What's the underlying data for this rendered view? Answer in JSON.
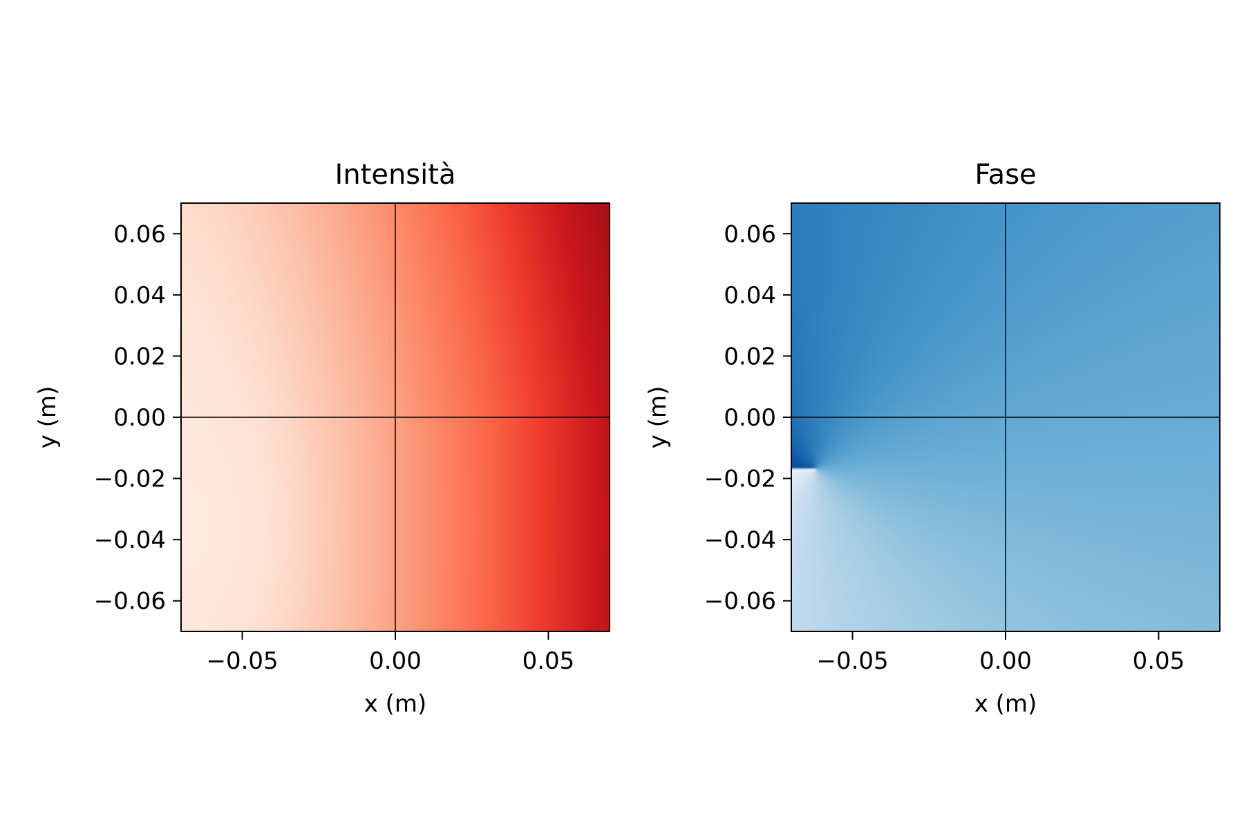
{
  "chart_data": [
    {
      "type": "heatmap",
      "title": "Intensità",
      "xlabel": "x (m)",
      "ylabel": "y (m)",
      "xlim": [
        -0.07,
        0.07
      ],
      "ylim": [
        -0.07,
        0.07
      ],
      "xticks": [
        "−0.05",
        "0.00",
        "0.05"
      ],
      "xtick_values": [
        -0.05,
        0.0,
        0.05
      ],
      "yticks": [
        "0.06",
        "0.04",
        "0.02",
        "0.00",
        "−0.02",
        "−0.04",
        "−0.06"
      ],
      "ytick_values": [
        0.06,
        0.04,
        0.02,
        0.0,
        -0.02,
        -0.04,
        -0.06
      ],
      "colormap": "Reds",
      "crosshair": [
        0.0,
        0.0
      ],
      "grid": false,
      "colors": {
        "low": "#fff5f0",
        "high": "#67000d"
      }
    },
    {
      "type": "heatmap",
      "title": "Fase",
      "xlabel": "x (m)",
      "ylabel": "y (m)",
      "xlim": [
        -0.07,
        0.07
      ],
      "ylim": [
        -0.07,
        0.07
      ],
      "xticks": [
        "−0.05",
        "0.00",
        "0.05"
      ],
      "xtick_values": [
        -0.05,
        0.0,
        0.05
      ],
      "yticks": [
        "0.06",
        "0.04",
        "0.02",
        "0.00",
        "−0.02",
        "−0.04",
        "−0.06"
      ],
      "ytick_values": [
        0.06,
        0.04,
        0.02,
        0.0,
        -0.02,
        -0.04,
        -0.06
      ],
      "colormap": "Blues",
      "crosshair": [
        0.0,
        0.0
      ],
      "phase_singularity": [
        -0.062,
        -0.017
      ],
      "grid": false,
      "colors": {
        "low": "#f7fbff",
        "high": "#08306b"
      }
    }
  ]
}
